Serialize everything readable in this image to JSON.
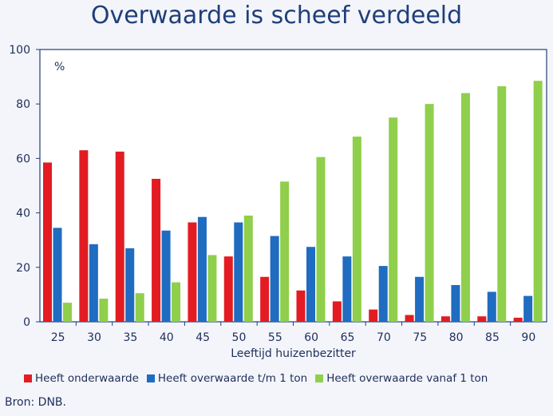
{
  "title": "Overwaarde is scheef verdeeld",
  "source": "Bron: DNB.",
  "chart_data": {
    "type": "bar",
    "title": "Overwaarde is scheef verdeeld",
    "unit_label": "%",
    "xlabel": "Leeftijd huizenbezitter",
    "ylabel": "",
    "ylim": [
      0,
      100
    ],
    "yticks": [
      0,
      20,
      40,
      60,
      80,
      100
    ],
    "grid": false,
    "legend_position": "bottom",
    "categories": [
      "25",
      "30",
      "35",
      "40",
      "45",
      "50",
      "55",
      "60",
      "65",
      "70",
      "75",
      "80",
      "85",
      "90"
    ],
    "series": [
      {
        "name": "Heeft onderwaarde",
        "color": "#e31c23",
        "values": [
          58.5,
          63,
          62.5,
          52.5,
          36.5,
          24,
          16.5,
          11.5,
          7.5,
          4.5,
          2.5,
          2,
          2,
          1.5
        ]
      },
      {
        "name": "Heeft overwaarde t/m  1 ton",
        "color": "#1f6cc1",
        "values": [
          34.5,
          28.5,
          27,
          33.5,
          38.5,
          36.5,
          31.5,
          27.5,
          24,
          20.5,
          16.5,
          13.5,
          11,
          9.5
        ]
      },
      {
        "name": "Heeft overwaarde vanaf 1 ton",
        "color": "#8fcf4b",
        "values": [
          7,
          8.5,
          10.5,
          14.5,
          24.5,
          39,
          51.5,
          60.5,
          68,
          75,
          80,
          84,
          86.5,
          88.5
        ]
      }
    ]
  }
}
